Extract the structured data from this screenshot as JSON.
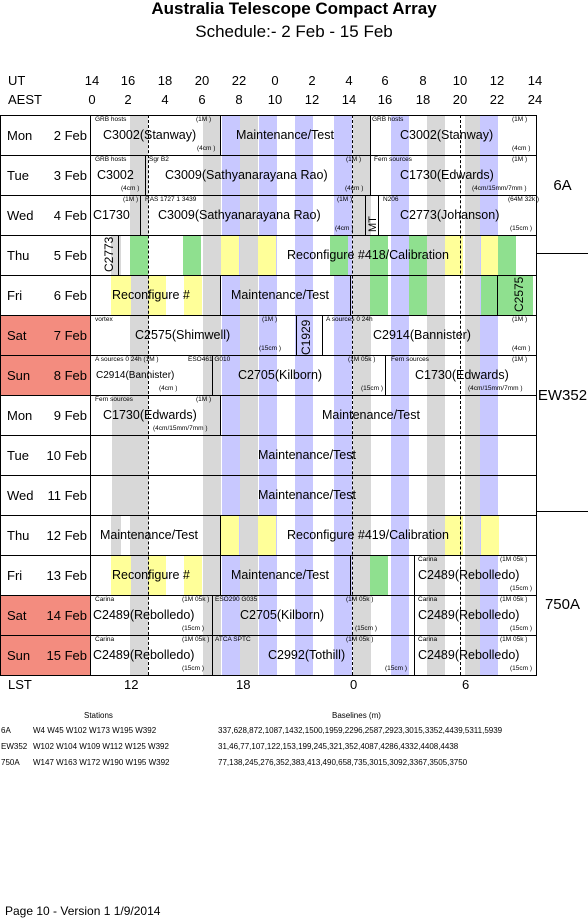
{
  "title": "Australia Telescope Compact Array",
  "subtitle": "Schedule:- 2  Feb - 15 Feb",
  "ut_label": "UT",
  "aest_label": "AEST",
  "ut_ticks": [
    "14",
    "16",
    "18",
    "20",
    "22",
    "0",
    "2",
    "4",
    "6",
    "8",
    "10",
    "12",
    "14"
  ],
  "aest_ticks": [
    "0",
    "2",
    "4",
    "6",
    "8",
    "10",
    "12",
    "14",
    "16",
    "18",
    "20",
    "22",
    "24"
  ],
  "days": [
    {
      "dow": "Mon",
      "date": "2 Feb",
      "weekend": false
    },
    {
      "dow": "Tue",
      "date": "3 Feb",
      "weekend": false
    },
    {
      "dow": "Wed",
      "date": "4 Feb",
      "weekend": false
    },
    {
      "dow": "Thu",
      "date": "5 Feb",
      "weekend": false
    },
    {
      "dow": "Fri",
      "date": "6 Feb",
      "weekend": false
    },
    {
      "dow": "Sat",
      "date": "7 Feb",
      "weekend": true
    },
    {
      "dow": "Sun",
      "date": "8 Feb",
      "weekend": true
    },
    {
      "dow": "Mon",
      "date": "9 Feb",
      "weekend": false
    },
    {
      "dow": "Tue",
      "date": "10 Feb",
      "weekend": false
    },
    {
      "dow": "Wed",
      "date": "11 Feb",
      "weekend": false
    },
    {
      "dow": "Thu",
      "date": "12 Feb",
      "weekend": false
    },
    {
      "dow": "Fri",
      "date": "13 Feb",
      "weekend": false
    },
    {
      "dow": "Sat",
      "date": "14 Feb",
      "weekend": true
    },
    {
      "dow": "Sun",
      "date": "15 Feb",
      "weekend": true
    }
  ],
  "configs": [
    "6A",
    "EW352",
    "750A"
  ],
  "entries": {
    "r0a": "C3002(Stanway)",
    "r0b": "Maintenance/Test",
    "r0c": "C3002(Stanway)",
    "r1a": "C3002",
    "r1b": "C3009(Sathyanarayana Rao)",
    "r1c": "C1730(Edwards)",
    "r2a": "C1730",
    "r2b": "C3009(Sathyanarayana Rao)",
    "r2c": "MT",
    "r2d": "C2773(Johanson)",
    "r3a": "C2773",
    "r3b": "Reconfigure #418/Calibration",
    "r4a": "Reconfigure #",
    "r4b": "Maintenance/Test",
    "r4c": "C2575",
    "r5a": "C2575(Shimwell)",
    "r5b": "C1929",
    "r5c": "C2914(Bannister)",
    "r6a": "C2914(Bannister)",
    "r6b": "C2705(Kilborn)",
    "r6c": "C1730(Edwards)",
    "r7a": "C1730(Edwards)",
    "r7b": "Maintenance/Test",
    "r8a": "Maintenance/Test",
    "r9a": "Maintenance/Test",
    "r10a": "Maintenance/Test",
    "r10b": "Reconfigure #419/Calibration",
    "r11a": "Reconfigure #",
    "r11b": "Maintenance/Test",
    "r11c": "C2489(Rebolledo)",
    "r12a": "C2489(Rebolledo)",
    "r12b": "C2705(Kilborn)",
    "r12c": "C2489(Rebolledo)",
    "r13a": "C2489(Rebolledo)",
    "r13b": "C2992(Tothill)",
    "r13c": "C2489(Rebolledo)"
  },
  "small": {
    "s0a": "GRB hosts",
    "s0b": "(1M )",
    "s0c": "(4cm )",
    "s0d": "GRB hosts",
    "s0e": "(1M )",
    "s0f": "(4cm )",
    "s1a": "GRB hosts",
    "s1b": "Sgr B2",
    "s1c": "(1M )",
    "s1d": "(4cm )",
    "s1e": "(4cm )",
    "s1f": "Fern sources",
    "s1g": "(1M )",
    "s1h": "(4cm/15mm/7mm )",
    "s2a": "(1M )",
    "s2b": "RAS 1727 1 3439",
    "s2c": "(1M )",
    "s2d": "(4cm )",
    "s2e": "N206",
    "s2f": "(64M 32k )",
    "s2g": "(15cm )",
    "s5a": "vortex",
    "s5b": "(1M )",
    "s5c": "(15cm )",
    "s5d": "A  sources 0 24h",
    "s5e": "(1M )",
    "s5f": "(4cm )",
    "s6a": "A  sources 0 24h  (1M )",
    "s6b": "ESO461 G010",
    "s6c": "(4cm )",
    "s6d": "(1M 05k )",
    "s6e": "(15cm )",
    "s6f": "Fern sources",
    "s6g": "(1M )",
    "s6h": "(4cm/15mm/7mm )",
    "s7a": "Fern sources",
    "s7b": "(1M )",
    "s7c": "(4cm/15mm/7mm )",
    "s11a": "Carina",
    "s11b": "(1M 05k )",
    "s11c": "(15cm )",
    "s12a": "Carina",
    "s12b": "(1M 05k )",
    "s12c": "(15cm )",
    "s12d": "ESO290 G035",
    "s12e": "(1M 05k )",
    "s12f": "(15cm )",
    "s12g": "Carina",
    "s12h": "(1M 05k )",
    "s12i": "(15cm )",
    "s13a": "Carina",
    "s13b": "(1M 05k )",
    "s13c": "(15cm )",
    "s13d": "ATCA SPTC",
    "s13e": "(1M 05k )",
    "s13f": "(15cm )",
    "s13g": "Carina",
    "s13h": "(1M 05k )",
    "s13i": "(15cm )"
  },
  "lst_label": "LST",
  "lst_ticks": [
    "12",
    "18",
    "0",
    "6"
  ],
  "stations_header": "Stations",
  "baselines_header": "Baselines (m)",
  "arrays": [
    {
      "name": "6A",
      "stations": "W4 W45 W102 W173 W195 W392",
      "baselines": "337,628,872,1087,1432,1500,1959,2296,2587,2923,3015,3352,4439,5311,5939"
    },
    {
      "name": "EW352",
      "stations": "W102 W104 W109 W112 W125 W392",
      "baselines": "31,46,77,107,122,153,199,245,321,352,4087,4286,4332,4408,4438"
    },
    {
      "name": "750A",
      "stations": "W147 W163 W172 W190 W195 W392",
      "baselines": "77,138,245,276,352,383,413,490,658,735,3015,3092,3367,3505,3750"
    }
  ],
  "footer": "Page 10 - Version 1  1/9/2014",
  "colors": {
    "weekend": "#f38c7f",
    "grey": "#d8d8d8",
    "blue": "#c8c8ff",
    "yellow": "#ffff99",
    "green": "#8fe08f"
  }
}
